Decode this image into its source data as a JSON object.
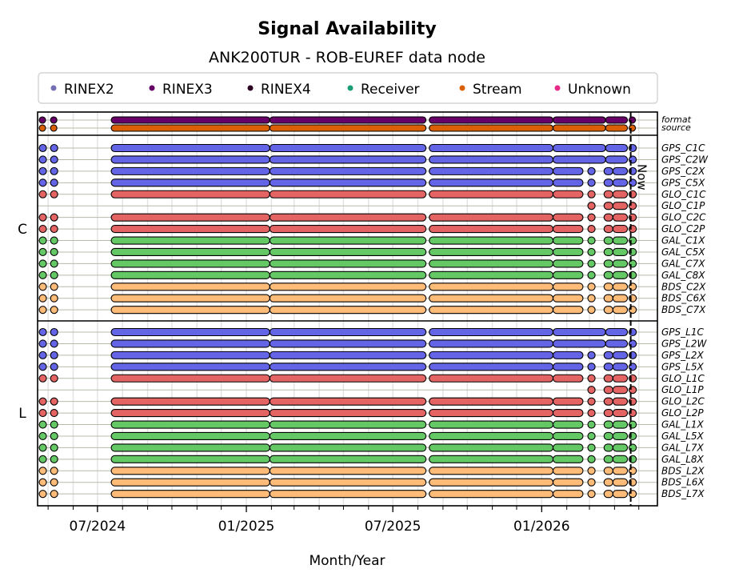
{
  "chart_data": {
    "type": "timeline",
    "title": "Signal Availability",
    "subtitle": "ANK200TUR - ROB-EUREF data node",
    "xlabel": "Month/Year",
    "x_ticks": [
      {
        "date": "2024-07-01",
        "label": "07/2024"
      },
      {
        "date": "2025-01-01",
        "label": "01/2025"
      },
      {
        "date": "2025-07-01",
        "label": "07/2025"
      },
      {
        "date": "2026-01-01",
        "label": "01/2026"
      }
    ],
    "xlim": [
      "2024-04-18",
      "2026-05-24"
    ],
    "now": {
      "date": "2026-04-21",
      "label": "Now"
    },
    "legend": {
      "placement": "top",
      "items": [
        {
          "name": "RINEX2",
          "color": "#7570b3"
        },
        {
          "name": "RINEX3",
          "color": "#660066"
        },
        {
          "name": "RINEX4",
          "color": "#2b0020"
        },
        {
          "name": "Receiver",
          "color": "#1b9e77"
        },
        {
          "name": "Stream",
          "color": "#d95f02"
        },
        {
          "name": "Unknown",
          "color": "#e7298a"
        }
      ]
    },
    "system_colors": {
      "format": "#660066",
      "source": "#d95f02",
      "GPS": "#6464e6",
      "GLO": "#e46464",
      "GAL": "#64c864",
      "BDS": "#ffbb78"
    },
    "patterns": {
      "full": [
        [
          "2024-04-20",
          "2024-04-24"
        ],
        [
          "2024-05-04",
          "2024-05-08"
        ],
        [
          "2024-07-18",
          "2025-01-30"
        ],
        [
          "2025-01-30",
          "2025-08-11"
        ],
        [
          "2025-08-15",
          "2026-01-15"
        ],
        [
          "2026-01-15",
          "2026-03-21"
        ],
        [
          "2026-03-21",
          "2026-04-17"
        ],
        [
          "2026-04-19",
          "2026-04-22"
        ]
      ],
      "gap": [
        [
          "2024-04-20",
          "2024-04-24"
        ],
        [
          "2024-05-04",
          "2024-05-08"
        ],
        [
          "2024-07-18",
          "2025-01-30"
        ],
        [
          "2025-01-30",
          "2025-08-11"
        ],
        [
          "2025-08-15",
          "2026-01-15"
        ],
        [
          "2026-01-15",
          "2026-02-21"
        ],
        [
          "2026-02-27",
          "2026-03-08"
        ],
        [
          "2026-03-19",
          "2026-03-30"
        ],
        [
          "2026-03-30",
          "2026-04-17"
        ],
        [
          "2026-04-19",
          "2026-04-22"
        ]
      ],
      "late": [
        [
          "2026-02-27",
          "2026-03-08"
        ],
        [
          "2026-03-19",
          "2026-03-30"
        ],
        [
          "2026-03-30",
          "2026-04-17"
        ],
        [
          "2026-04-19",
          "2026-04-22"
        ]
      ]
    },
    "groups": [
      {
        "label": "",
        "rows": [
          {
            "name": "format",
            "sys": "format",
            "p": "full"
          },
          {
            "name": "source",
            "sys": "source",
            "p": "full"
          }
        ]
      },
      {
        "label": "C",
        "rows": [
          {
            "name": "GPS_C1C",
            "sys": "GPS",
            "p": "full"
          },
          {
            "name": "GPS_C2W",
            "sys": "GPS",
            "p": "full"
          },
          {
            "name": "GPS_C2X",
            "sys": "GPS",
            "p": "gap"
          },
          {
            "name": "GPS_C5X",
            "sys": "GPS",
            "p": "gap"
          },
          {
            "name": "GLO_C1C",
            "sys": "GLO",
            "p": "gap"
          },
          {
            "name": "GLO_C1P",
            "sys": "GLO",
            "p": "late"
          },
          {
            "name": "GLO_C2C",
            "sys": "GLO",
            "p": "gap"
          },
          {
            "name": "GLO_C2P",
            "sys": "GLO",
            "p": "gap"
          },
          {
            "name": "GAL_C1X",
            "sys": "GAL",
            "p": "gap"
          },
          {
            "name": "GAL_C5X",
            "sys": "GAL",
            "p": "gap"
          },
          {
            "name": "GAL_C7X",
            "sys": "GAL",
            "p": "gap"
          },
          {
            "name": "GAL_C8X",
            "sys": "GAL",
            "p": "gap"
          },
          {
            "name": "BDS_C2X",
            "sys": "BDS",
            "p": "gap"
          },
          {
            "name": "BDS_C6X",
            "sys": "BDS",
            "p": "gap"
          },
          {
            "name": "BDS_C7X",
            "sys": "BDS",
            "p": "gap"
          }
        ]
      },
      {
        "label": "L",
        "rows": [
          {
            "name": "GPS_L1C",
            "sys": "GPS",
            "p": "full"
          },
          {
            "name": "GPS_L2W",
            "sys": "GPS",
            "p": "full"
          },
          {
            "name": "GPS_L2X",
            "sys": "GPS",
            "p": "gap"
          },
          {
            "name": "GPS_L5X",
            "sys": "GPS",
            "p": "gap"
          },
          {
            "name": "GLO_L1C",
            "sys": "GLO",
            "p": "gap"
          },
          {
            "name": "GLO_L1P",
            "sys": "GLO",
            "p": "late"
          },
          {
            "name": "GLO_L2C",
            "sys": "GLO",
            "p": "gap"
          },
          {
            "name": "GLO_L2P",
            "sys": "GLO",
            "p": "gap"
          },
          {
            "name": "GAL_L1X",
            "sys": "GAL",
            "p": "gap"
          },
          {
            "name": "GAL_L5X",
            "sys": "GAL",
            "p": "gap"
          },
          {
            "name": "GAL_L7X",
            "sys": "GAL",
            "p": "gap"
          },
          {
            "name": "GAL_L8X",
            "sys": "GAL",
            "p": "gap"
          },
          {
            "name": "BDS_L2X",
            "sys": "BDS",
            "p": "gap"
          },
          {
            "name": "BDS_L6X",
            "sys": "BDS",
            "p": "gap"
          },
          {
            "name": "BDS_L7X",
            "sys": "BDS",
            "p": "gap"
          }
        ]
      }
    ]
  }
}
